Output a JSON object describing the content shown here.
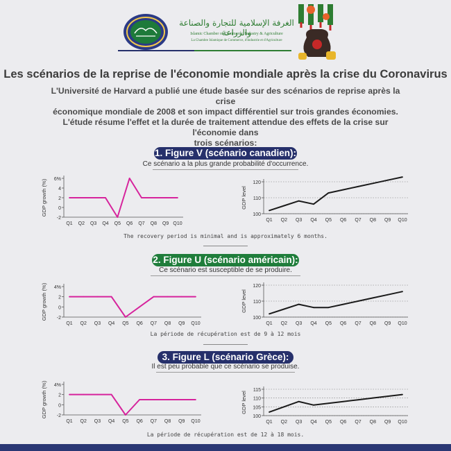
{
  "header": {
    "org_arabic": "الغرفة الإسلامية للتجارة والصناعة والزراعة",
    "org_en": "Islamic Chamber of Commerce, Industry & Agriculture",
    "org_fr": "La Chambre Islamique de Commerce, d'Industrie et d'Agriculture",
    "logo_icon": "chamber-emblem-icon",
    "illustration_icon": "money-bag-virus-icon",
    "colors": {
      "green": "#2e7d32",
      "navy": "#26306b"
    }
  },
  "title": "Les scénarios de la reprise de l'économie mondiale après la crise du Coronavirus",
  "intro": [
    "L'Université de Harvard a publié une étude basée sur des scénarios de reprise après la crise",
    "économique mondiale de 2008 et son impact différentiel sur trois grandes économies.",
    "L'étude résume l'effet et la durée de traitement attendue des effets de la crise sur l'économie dans",
    "trois scénarios:"
  ],
  "scenarios": [
    {
      "heading": "1. Figure V (scénario canadien):",
      "subtitle": "Ce scénario a la plus grande probabilité d'occurrence.",
      "note": "The recovery period is minimal and is approximately 6 months."
    },
    {
      "heading": "2. Figure U (scénario américain):",
      "subtitle": "Ce scénario est susceptible de se produire.",
      "note": "La période de récupération est de 9 à 12 mois"
    },
    {
      "heading": "3. Figure L  (scénario Grèce):",
      "subtitle": "Il est peu probable que ce scénario se produise.",
      "note": "La période de récupération est de 12 à 18 mois."
    }
  ],
  "chart_data": [
    {
      "type": "line",
      "ylabel": "GDP growth (%)",
      "categories": [
        "Q1",
        "Q2",
        "Q3",
        "Q4",
        "Q5",
        "Q6",
        "Q7",
        "Q8",
        "Q9",
        "Q10"
      ],
      "values": [
        2,
        2,
        2,
        2,
        -2,
        6,
        2,
        2,
        2,
        2
      ],
      "yticks": [
        "6%",
        "4",
        "2",
        "0",
        "-2"
      ],
      "ylim": [
        -2,
        6
      ],
      "color": "#d6239c"
    },
    {
      "type": "line",
      "ylabel": "GDP level",
      "categories": [
        "Q1",
        "Q2",
        "Q3",
        "Q4",
        "Q5",
        "Q6",
        "Q7",
        "Q8",
        "Q9",
        "Q10"
      ],
      "values": [
        102,
        105,
        108,
        106,
        113,
        115,
        117,
        119,
        121,
        123
      ],
      "yticks": [
        "120",
        "110",
        "100"
      ],
      "ylim": [
        100,
        120
      ],
      "grid": true,
      "color": "#1a1a1a"
    },
    {
      "type": "line",
      "ylabel": "GDP growth (%)",
      "categories": [
        "Q1",
        "Q2",
        "Q3",
        "Q4",
        "Q5",
        "Q6",
        "Q7",
        "Q8",
        "Q9",
        "Q10"
      ],
      "values": [
        2,
        2,
        2,
        2,
        -2,
        0,
        2,
        2,
        2,
        2
      ],
      "yticks": [
        "4%",
        "2",
        "0",
        "-2"
      ],
      "ylim": [
        -2,
        4
      ],
      "color": "#d6239c"
    },
    {
      "type": "line",
      "ylabel": "GDP level",
      "categories": [
        "Q1",
        "Q2",
        "Q3",
        "Q4",
        "Q5",
        "Q6",
        "Q7",
        "Q8",
        "Q9",
        "Q10"
      ],
      "values": [
        102,
        105,
        108,
        106,
        106,
        108,
        110,
        112,
        114,
        116
      ],
      "yticks": [
        "120",
        "110",
        "100"
      ],
      "ylim": [
        100,
        120
      ],
      "grid": true,
      "color": "#1a1a1a"
    },
    {
      "type": "line",
      "ylabel": "GDP growth (%)",
      "categories": [
        "Q1",
        "Q2",
        "Q3",
        "Q4",
        "Q5",
        "Q6",
        "Q7",
        "Q8",
        "Q9",
        "Q10"
      ],
      "values": [
        2,
        2,
        2,
        2,
        -2,
        1,
        1,
        1,
        1,
        1
      ],
      "yticks": [
        "4%",
        "2",
        "0",
        "-2"
      ],
      "ylim": [
        -2,
        4
      ],
      "color": "#d6239c"
    },
    {
      "type": "line",
      "ylabel": "GDP level",
      "categories": [
        "Q1",
        "Q2",
        "Q3",
        "Q4",
        "Q5",
        "Q6",
        "Q7",
        "Q8",
        "Q9",
        "Q10"
      ],
      "values": [
        102,
        105,
        108,
        106,
        107,
        108,
        109,
        110,
        111,
        112
      ],
      "yticks": [
        "115",
        "110",
        "105",
        "100"
      ],
      "ylim": [
        100,
        115
      ],
      "grid": true,
      "color": "#1a1a1a"
    }
  ]
}
